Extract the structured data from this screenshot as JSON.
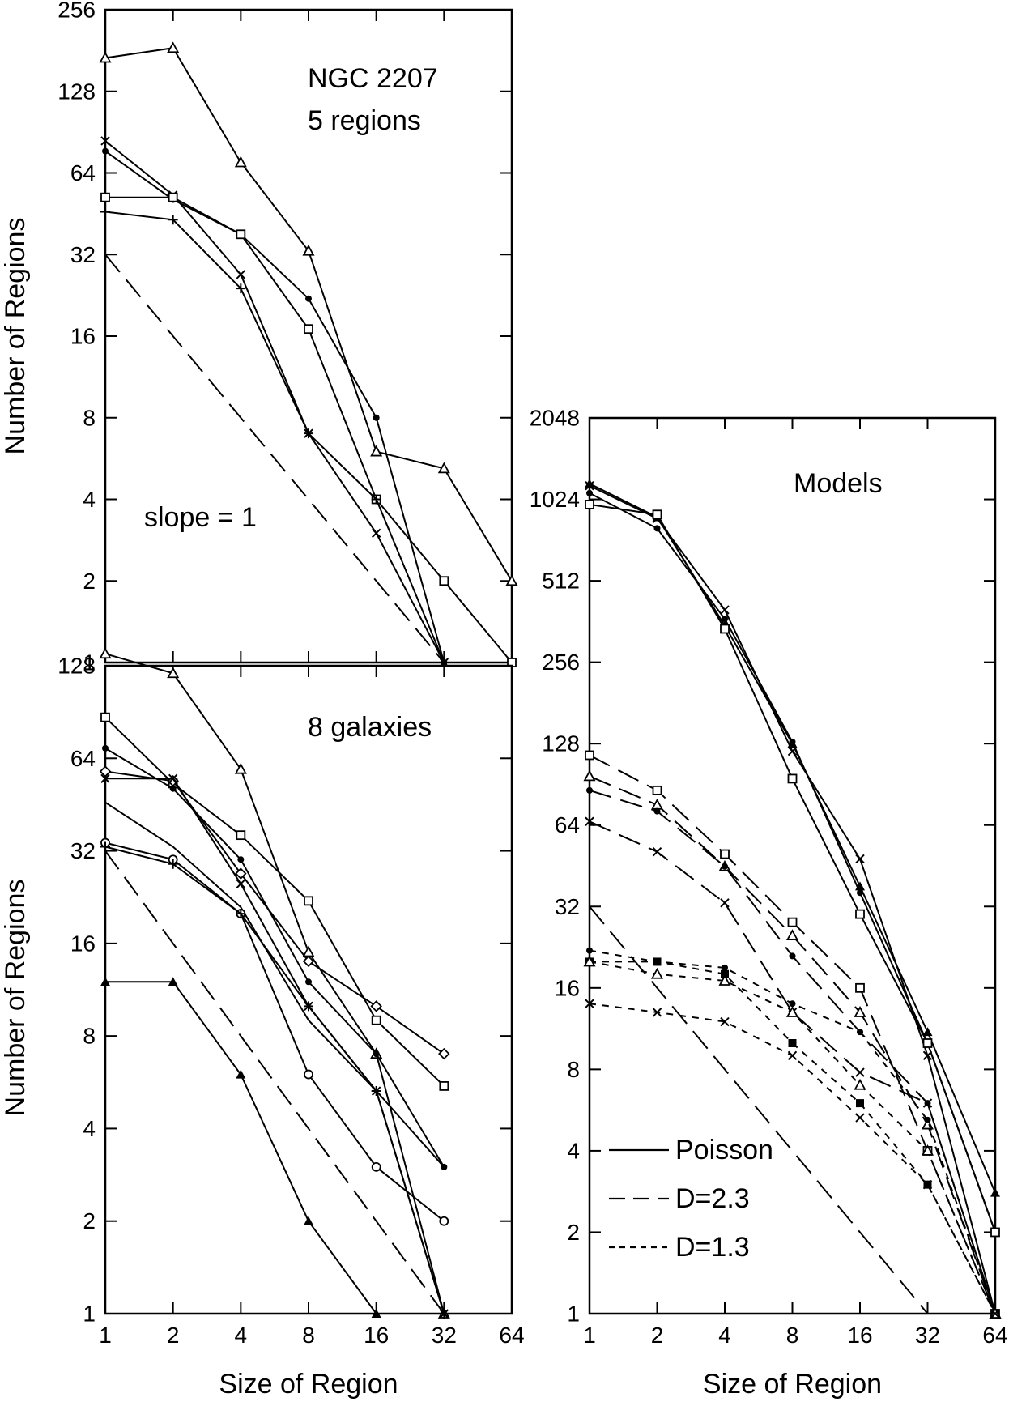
{
  "chart_data": [
    {
      "panel": "top-left",
      "type": "line",
      "ylabel": "Number of Regions",
      "xlabel": "",
      "x_scale": "log2",
      "y_scale": "log2",
      "xlim": [
        1,
        64
      ],
      "ylim": [
        1,
        256
      ],
      "xticks": [
        "1",
        "2",
        "4",
        "8",
        "16",
        "32",
        "64"
      ],
      "yticks": [
        "1",
        "2",
        "4",
        "8",
        "16",
        "32",
        "64",
        "128",
        "256"
      ],
      "annotations": [
        "NGC 2207",
        "5 regions",
        "slope = 1"
      ],
      "series": [
        {
          "name": "triangle",
          "marker": "triangle-open",
          "dash": "solid",
          "points": [
            [
              1,
              170
            ],
            [
              2,
              185
            ],
            [
              4,
              70
            ],
            [
              8,
              33
            ],
            [
              16,
              6
            ],
            [
              32,
              5.2
            ],
            [
              64,
              2
            ]
          ]
        },
        {
          "name": "x",
          "marker": "x",
          "dash": "solid",
          "points": [
            [
              1,
              84
            ],
            [
              2,
              53
            ],
            [
              4,
              27
            ],
            [
              8,
              7
            ],
            [
              16,
              3
            ],
            [
              32,
              1
            ]
          ]
        },
        {
          "name": "dot",
          "marker": "dot",
          "dash": "solid",
          "points": [
            [
              1,
              77
            ],
            [
              2,
              51
            ],
            [
              4,
              38
            ],
            [
              8,
              22
            ],
            [
              16,
              8
            ],
            [
              32,
              1
            ]
          ]
        },
        {
          "name": "square",
          "marker": "square-open",
          "dash": "solid",
          "points": [
            [
              1,
              52
            ],
            [
              2,
              52
            ],
            [
              4,
              38
            ],
            [
              8,
              17
            ],
            [
              16,
              4
            ],
            [
              32,
              2
            ],
            [
              64,
              1
            ]
          ]
        },
        {
          "name": "plus",
          "marker": "plus",
          "dash": "solid",
          "points": [
            [
              1,
              46
            ],
            [
              2,
              43
            ],
            [
              4,
              24
            ],
            [
              8,
              7
            ],
            [
              16,
              4
            ],
            [
              32,
              1
            ]
          ]
        },
        {
          "name": "slope = 1",
          "marker": "none",
          "dash": "long",
          "points": [
            [
              1,
              32
            ],
            [
              32,
              1
            ]
          ]
        }
      ]
    },
    {
      "panel": "bottom-left",
      "type": "line",
      "ylabel": "Number of Regions",
      "xlabel": "Size of Region",
      "x_scale": "log2",
      "y_scale": "log2",
      "xlim": [
        1,
        64
      ],
      "ylim": [
        1,
        128
      ],
      "xticks": [
        "1",
        "2",
        "4",
        "8",
        "16",
        "32",
        "64"
      ],
      "yticks": [
        "1",
        "2",
        "4",
        "8",
        "16",
        "32",
        "64",
        "128"
      ],
      "annotations": [
        "8 galaxies"
      ],
      "series": [
        {
          "name": "triangle",
          "marker": "triangle-open",
          "dash": "solid",
          "points": [
            [
              1,
              140
            ],
            [
              2,
              121
            ],
            [
              4,
              59
            ],
            [
              8,
              15
            ],
            [
              16,
              7
            ],
            [
              32,
              1
            ]
          ]
        },
        {
          "name": "square",
          "marker": "square-open",
          "dash": "solid",
          "points": [
            [
              1,
              87
            ],
            [
              2,
              53
            ],
            [
              4,
              36
            ],
            [
              8,
              22
            ],
            [
              16,
              9
            ],
            [
              32,
              5.5
            ]
          ]
        },
        {
          "name": "dot",
          "marker": "dot",
          "dash": "solid",
          "points": [
            [
              1,
              69
            ],
            [
              2,
              51
            ],
            [
              4,
              30
            ],
            [
              8,
              12
            ],
            [
              16,
              7
            ],
            [
              32,
              3
            ]
          ]
        },
        {
          "name": "diamond",
          "marker": "diamond-open",
          "dash": "solid",
          "points": [
            [
              1,
              58
            ],
            [
              2,
              54
            ],
            [
              4,
              27
            ],
            [
              8,
              14
            ],
            [
              16,
              10
            ],
            [
              32,
              7
            ]
          ]
        },
        {
          "name": "x",
          "marker": "x",
          "dash": "solid",
          "points": [
            [
              1,
              55
            ],
            [
              2,
              55
            ],
            [
              4,
              25
            ],
            [
              8,
              10
            ],
            [
              16,
              5.3
            ],
            [
              32,
              1
            ]
          ]
        },
        {
          "name": "plain",
          "marker": "none",
          "dash": "solid",
          "points": [
            [
              1,
              46
            ],
            [
              2,
              33
            ],
            [
              4,
              21
            ],
            [
              8,
              9
            ],
            [
              16,
              5.3
            ],
            [
              32,
              3
            ]
          ]
        },
        {
          "name": "circle",
          "marker": "circle-open",
          "dash": "solid",
          "points": [
            [
              1,
              34
            ],
            [
              2,
              30
            ],
            [
              4,
              20
            ],
            [
              8,
              6
            ],
            [
              16,
              3
            ],
            [
              32,
              2
            ]
          ]
        },
        {
          "name": "plus",
          "marker": "plus",
          "dash": "solid",
          "points": [
            [
              1,
              33
            ],
            [
              2,
              29
            ],
            [
              4,
              20
            ],
            [
              8,
              10
            ],
            [
              16,
              5.3
            ],
            [
              32,
              1
            ]
          ]
        },
        {
          "name": "filled-triangle",
          "marker": "triangle-filled",
          "dash": "solid",
          "points": [
            [
              1,
              12
            ],
            [
              2,
              12
            ],
            [
              4,
              6
            ],
            [
              8,
              2
            ],
            [
              16,
              1
            ]
          ]
        },
        {
          "name": "slope = 1",
          "marker": "none",
          "dash": "long",
          "points": [
            [
              1,
              32
            ],
            [
              32,
              1
            ]
          ]
        }
      ]
    },
    {
      "panel": "right",
      "type": "line",
      "ylabel": "",
      "xlabel": "Size of Region",
      "x_scale": "log2",
      "y_scale": "log2",
      "xlim": [
        1,
        64
      ],
      "ylim": [
        1,
        2048
      ],
      "xticks": [
        "1",
        "2",
        "4",
        "8",
        "16",
        "32",
        "64"
      ],
      "yticks": [
        "1",
        "2",
        "4",
        "8",
        "16",
        "32",
        "64",
        "128",
        "256",
        "512",
        "1024",
        "2048"
      ],
      "annotations": [
        "Models"
      ],
      "legend": [
        {
          "label": "Poisson",
          "dash": "solid"
        },
        {
          "label": "D=2.3",
          "dash": "long"
        },
        {
          "label": "D=1.3",
          "dash": "short"
        }
      ],
      "legend_position": "bottom-left",
      "series": [
        {
          "name": "Poisson triangle",
          "marker": "triangle-filled",
          "dash": "solid",
          "points": [
            [
              1,
              1170
            ],
            [
              2,
              880
            ],
            [
              4,
              350
            ],
            [
              8,
              128
            ],
            [
              16,
              38
            ],
            [
              32,
              11
            ],
            [
              64,
              2.8
            ]
          ]
        },
        {
          "name": "Poisson x",
          "marker": "x",
          "dash": "solid",
          "points": [
            [
              1,
              1150
            ],
            [
              2,
              870
            ],
            [
              4,
              400
            ],
            [
              8,
              120
            ],
            [
              16,
              48
            ],
            [
              32,
              9
            ],
            [
              64,
              1
            ]
          ]
        },
        {
          "name": "Poisson dot",
          "marker": "dot",
          "dash": "solid",
          "points": [
            [
              1,
              1080
            ],
            [
              2,
              800
            ],
            [
              4,
              370
            ],
            [
              8,
              130
            ],
            [
              16,
              36
            ],
            [
              32,
              10
            ],
            [
              64,
              2
            ]
          ]
        },
        {
          "name": "Poisson square",
          "marker": "square-open",
          "dash": "solid",
          "points": [
            [
              1,
              980
            ],
            [
              2,
              900
            ],
            [
              4,
              340
            ],
            [
              8,
              95
            ],
            [
              16,
              30
            ],
            [
              32,
              10
            ],
            [
              64,
              2
            ]
          ]
        },
        {
          "name": "D=2.3 square",
          "marker": "square-open",
          "dash": "long",
          "points": [
            [
              1,
              116
            ],
            [
              2,
              86
            ],
            [
              4,
              50
            ],
            [
              8,
              28
            ],
            [
              16,
              16
            ],
            [
              32,
              4
            ],
            [
              64,
              1
            ]
          ]
        },
        {
          "name": "D=2.3 triangle",
          "marker": "triangle-open",
          "dash": "long",
          "points": [
            [
              1,
              97
            ],
            [
              2,
              76
            ],
            [
              4,
              45
            ],
            [
              8,
              25
            ],
            [
              16,
              13
            ],
            [
              32,
              5
            ],
            [
              64,
              1
            ]
          ]
        },
        {
          "name": "D=2.3 dot",
          "marker": "dot",
          "dash": "long",
          "points": [
            [
              1,
              86
            ],
            [
              2,
              72
            ],
            [
              4,
              45
            ],
            [
              8,
              21
            ],
            [
              16,
              11
            ],
            [
              32,
              6
            ],
            [
              64,
              1
            ]
          ]
        },
        {
          "name": "D=2.3 x",
          "marker": "x",
          "dash": "long",
          "points": [
            [
              1,
              66
            ],
            [
              2,
              51
            ],
            [
              4,
              33
            ],
            [
              8,
              13
            ],
            [
              16,
              7.8
            ],
            [
              32,
              6
            ],
            [
              64,
              1
            ]
          ]
        },
        {
          "name": "D=1.3 dot",
          "marker": "dot",
          "dash": "short",
          "points": [
            [
              1,
              22
            ],
            [
              2,
              20
            ],
            [
              4,
              19
            ],
            [
              8,
              14
            ],
            [
              16,
              11
            ],
            [
              32,
              5.2
            ],
            [
              64,
              1
            ]
          ]
        },
        {
          "name": "D=1.3 square",
          "marker": "square-filled",
          "dash": "short",
          "points": [
            [
              1,
              20
            ],
            [
              2,
              20
            ],
            [
              4,
              18
            ],
            [
              8,
              10
            ],
            [
              16,
              6
            ],
            [
              32,
              3
            ],
            [
              64,
              1
            ]
          ]
        },
        {
          "name": "D=1.3 triangle",
          "marker": "triangle-open",
          "dash": "short",
          "points": [
            [
              1,
              20
            ],
            [
              2,
              18
            ],
            [
              4,
              17
            ],
            [
              8,
              13
            ],
            [
              16,
              7
            ],
            [
              32,
              4
            ],
            [
              64,
              1
            ]
          ]
        },
        {
          "name": "D=1.3 x",
          "marker": "x",
          "dash": "short",
          "points": [
            [
              1,
              14
            ],
            [
              2,
              13
            ],
            [
              4,
              12
            ],
            [
              8,
              9
            ],
            [
              16,
              5.3
            ],
            [
              32,
              3
            ],
            [
              64,
              1
            ]
          ]
        },
        {
          "name": "slope = 1",
          "marker": "none",
          "dash": "long",
          "points": [
            [
              1,
              32
            ],
            [
              32,
              1
            ]
          ]
        }
      ]
    }
  ]
}
